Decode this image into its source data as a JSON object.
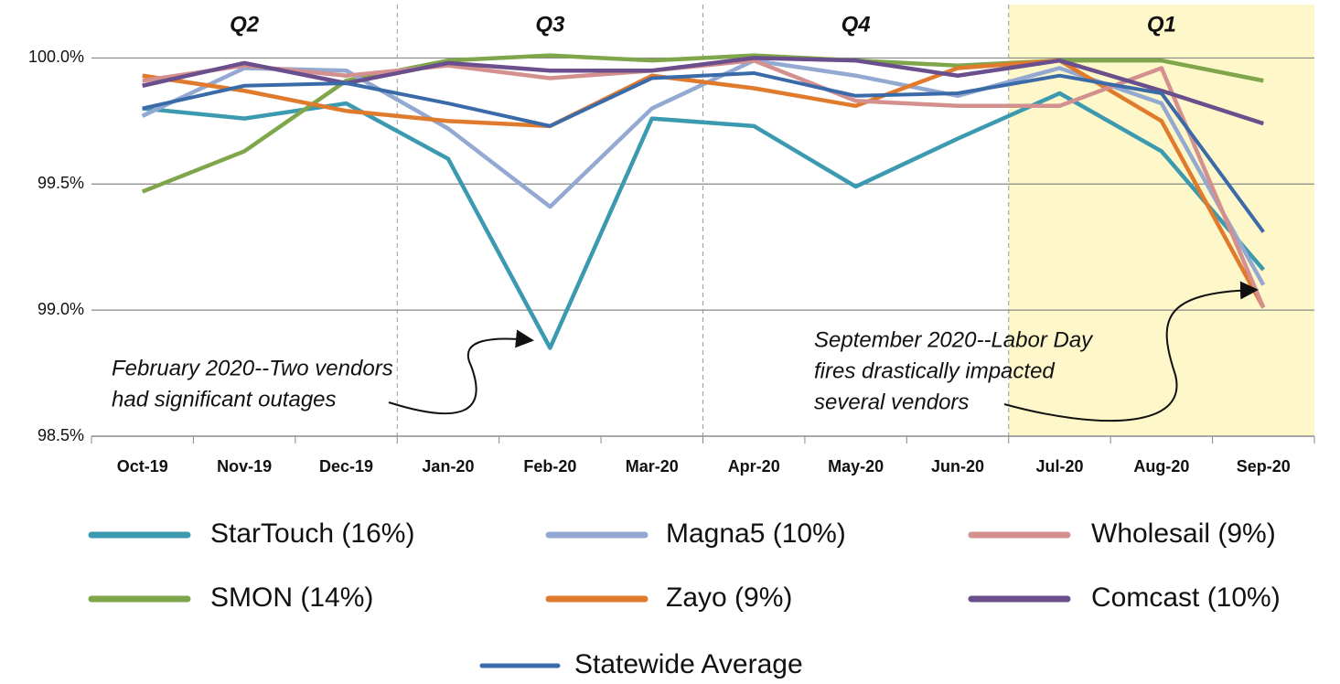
{
  "chart_data": {
    "type": "line",
    "categories": [
      "Oct-19",
      "Nov-19",
      "Dec-19",
      "Jan-20",
      "Feb-20",
      "Mar-20",
      "Apr-20",
      "May-20",
      "Jun-20",
      "Jul-20",
      "Aug-20",
      "Sep-20"
    ],
    "ylim": [
      98.5,
      100.23
    ],
    "yticks": [
      {
        "value": 98.5,
        "label": "98.5%"
      },
      {
        "value": 99.0,
        "label": "99.0%"
      },
      {
        "value": 99.5,
        "label": "99.5%"
      },
      {
        "value": 100.0,
        "label": "100.0%"
      }
    ],
    "grid": true,
    "quarters": [
      "Q2",
      "Q3",
      "Q4",
      "Q1"
    ],
    "annotations": [
      [
        "February 2020--Two vendors",
        "had significant  outages"
      ],
      [
        "September 2020--Labor Day",
        "fires drastically impacted",
        "several vendors"
      ]
    ],
    "series": [
      {
        "name": "StarTouch (16%)",
        "color": "#3b9ab0",
        "values": [
          99.8,
          99.76,
          99.82,
          99.6,
          98.85,
          99.76,
          99.73,
          99.49,
          99.68,
          99.86,
          99.63,
          99.16
        ]
      },
      {
        "name": "SMON (14%)",
        "color": "#7fa64a",
        "values": [
          99.47,
          99.63,
          99.91,
          99.99,
          100.01,
          99.99,
          100.01,
          99.99,
          99.97,
          99.99,
          99.99,
          99.91
        ]
      },
      {
        "name": "Magna5 (10%)",
        "color": "#93a9d2",
        "values": [
          99.77,
          99.96,
          99.95,
          99.72,
          99.41,
          99.8,
          99.99,
          99.93,
          99.85,
          99.96,
          99.82,
          99.1
        ]
      },
      {
        "name": "Zayo (9%)",
        "color": "#e07b2e",
        "values": [
          99.93,
          99.87,
          99.79,
          99.75,
          99.73,
          99.93,
          99.88,
          99.81,
          99.96,
          99.99,
          99.75,
          99.01
        ]
      },
      {
        "name": "Wholesail (9%)",
        "color": "#d4908f",
        "values": [
          99.91,
          99.97,
          99.93,
          99.97,
          99.92,
          99.95,
          99.99,
          99.83,
          99.81,
          99.81,
          99.96,
          99.01
        ]
      },
      {
        "name": "Comcast (10%)",
        "color": "#6a4f8c",
        "values": [
          99.89,
          99.98,
          99.9,
          99.98,
          99.95,
          99.95,
          100.0,
          99.99,
          99.93,
          99.99,
          99.87,
          99.74
        ]
      },
      {
        "name": "Statewide Average",
        "color": "#3a6aa8",
        "values": [
          99.8,
          99.89,
          99.9,
          99.82,
          99.73,
          99.92,
          99.94,
          99.85,
          99.86,
          99.93,
          99.86,
          99.31
        ]
      }
    ]
  }
}
